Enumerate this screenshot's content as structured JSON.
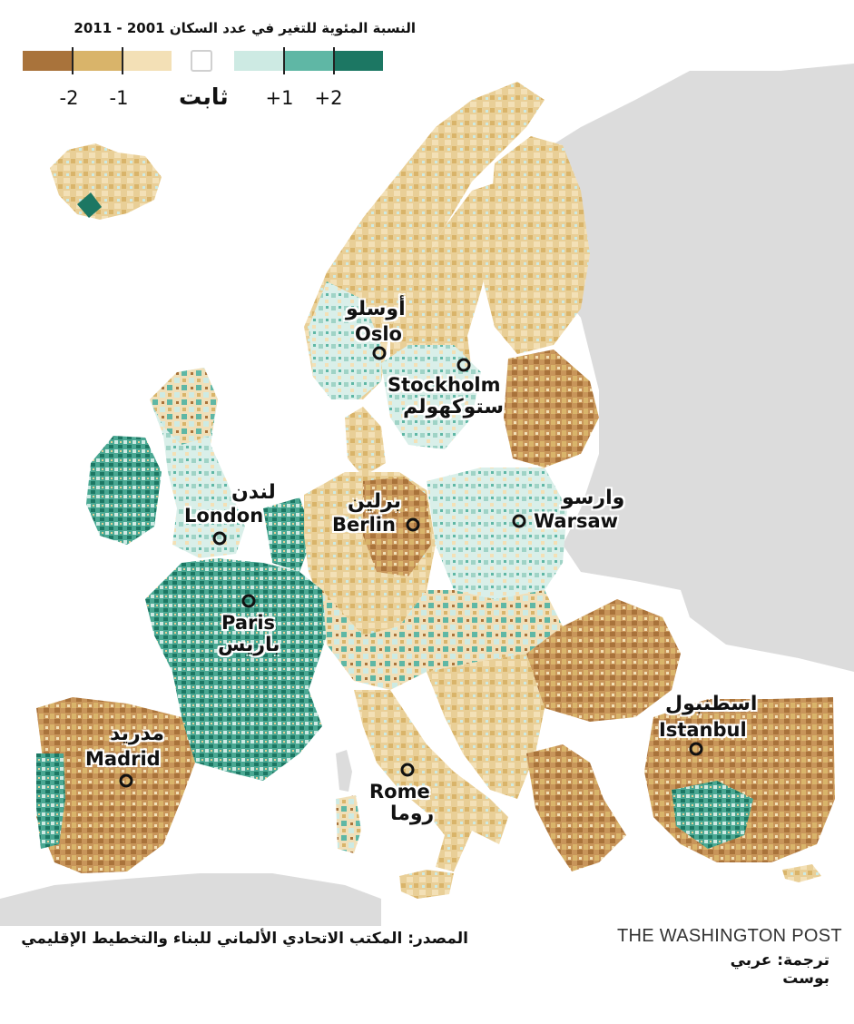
{
  "title": "النسبة المئوية للتغير في عدد السكان 2001 - 2011",
  "legend": {
    "swatches": [
      {
        "value": -3,
        "color": "#a9733b"
      },
      {
        "value": -2,
        "color": "#d9b46a"
      },
      {
        "value": -1,
        "color": "#f3e0b6"
      },
      {
        "value": 0,
        "color": "#ffffff",
        "border": "#d0d0d0"
      },
      {
        "value": 1,
        "color": "#cdeae3"
      },
      {
        "value": 2,
        "color": "#5fb7a5"
      },
      {
        "value": 3,
        "color": "#1c7763"
      }
    ],
    "labels": {
      "minus2": "-2",
      "minus1": "-1",
      "stable": "ثابت",
      "plus1": "+1",
      "plus2": "+2"
    }
  },
  "cities": {
    "oslo": {
      "en": "Oslo",
      "ar": "أوسلو"
    },
    "stockholm": {
      "en": "Stockholm",
      "ar": "ستوكهولم"
    },
    "london": {
      "en": "London",
      "ar": "لندن"
    },
    "berlin": {
      "en": "Berlin",
      "ar": "برلين"
    },
    "warsaw": {
      "en": "Warsaw",
      "ar": "وارسو"
    },
    "paris": {
      "en": "Paris",
      "ar": "باريس"
    },
    "madrid": {
      "en": "Madrid",
      "ar": "مدريد"
    },
    "rome": {
      "en": "Rome",
      "ar": "روما"
    },
    "istanbul": {
      "en": "Istanbul",
      "ar": "اسطنبول"
    }
  },
  "colors": {
    "land_nodata": "#dcdcdc",
    "sea": "#ffffff",
    "decline_strong": "#a9733b",
    "decline": "#d9b46a",
    "decline_light": "#f3e0b6",
    "growth_light": "#cdeae3",
    "growth": "#5fb7a5",
    "growth_strong": "#1c7763"
  },
  "footer": {
    "source": "المصدر: المكتب الاتحادي الألماني للبناء والتخطيط الإقليمي",
    "brand": "THE WASHINGTON POST",
    "translation": "ترجمة: عربي بوست"
  }
}
